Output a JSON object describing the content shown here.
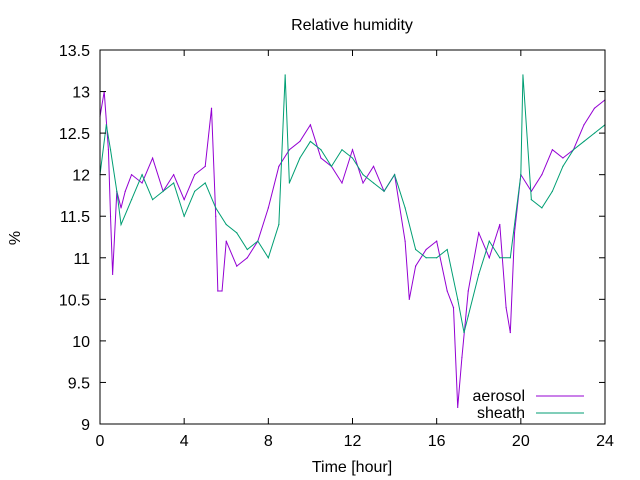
{
  "chart_data": {
    "type": "line",
    "title": "Relative humidity",
    "xlabel": "Time [hour]",
    "ylabel": "%",
    "xlim": [
      0,
      24
    ],
    "ylim": [
      9,
      13.5
    ],
    "xticks": [
      "0",
      "4",
      "8",
      "12",
      "16",
      "20",
      "24"
    ],
    "yticks": [
      "9",
      "9.5",
      "10",
      "10.5",
      "11",
      "11.5",
      "12",
      "12.5",
      "13",
      "13.5"
    ],
    "grid": false,
    "legend_position": "bottom-right",
    "series": [
      {
        "name": "aerosol",
        "color": "#9400d3",
        "x": [
          0,
          0.2,
          0.4,
          0.5,
          0.6,
          0.8,
          1.0,
          1.2,
          1.5,
          2.0,
          2.5,
          3.0,
          3.5,
          4.0,
          4.5,
          5.0,
          5.3,
          5.5,
          5.6,
          5.8,
          6.0,
          6.5,
          7.0,
          7.5,
          8.0,
          8.5,
          9.0,
          9.5,
          10.0,
          10.5,
          11.0,
          11.5,
          12.0,
          12.5,
          13.0,
          13.5,
          14.0,
          14.5,
          14.7,
          15.0,
          15.5,
          16.0,
          16.5,
          16.8,
          17.0,
          17.2,
          17.5,
          18.0,
          18.5,
          19.0,
          19.3,
          19.5,
          19.7,
          20.0,
          20.5,
          21.0,
          21.5,
          22.0,
          22.5,
          23.0,
          23.5,
          24.0
        ],
        "values": [
          12.7,
          13.0,
          12.3,
          11.5,
          10.8,
          11.8,
          11.6,
          11.8,
          12.0,
          11.9,
          12.2,
          11.8,
          12.0,
          11.7,
          12.0,
          12.1,
          12.8,
          11.5,
          10.6,
          10.6,
          11.2,
          10.9,
          11.0,
          11.2,
          11.6,
          12.1,
          12.3,
          12.4,
          12.6,
          12.2,
          12.1,
          11.9,
          12.3,
          11.9,
          12.1,
          11.8,
          12.0,
          11.2,
          10.5,
          10.9,
          11.1,
          11.2,
          10.6,
          10.4,
          9.2,
          9.8,
          10.6,
          11.3,
          11.0,
          11.4,
          10.4,
          10.1,
          11.3,
          12.0,
          11.8,
          12.0,
          12.3,
          12.2,
          12.3,
          12.6,
          12.8,
          12.9
        ]
      },
      {
        "name": "sheath",
        "color": "#009e73",
        "x": [
          0,
          0.3,
          0.5,
          0.8,
          1.0,
          1.5,
          2.0,
          2.5,
          3.0,
          3.5,
          4.0,
          4.5,
          5.0,
          5.5,
          6.0,
          6.5,
          7.0,
          7.5,
          8.0,
          8.5,
          8.8,
          9.0,
          9.5,
          10.0,
          10.5,
          11.0,
          11.5,
          12.0,
          12.5,
          13.0,
          13.5,
          14.0,
          14.5,
          15.0,
          15.5,
          16.0,
          16.5,
          17.0,
          17.3,
          17.5,
          18.0,
          18.5,
          19.0,
          19.5,
          20.0,
          20.1,
          20.5,
          21.0,
          21.5,
          22.0,
          22.5,
          23.0,
          23.5,
          24.0
        ],
        "values": [
          12.0,
          12.6,
          12.3,
          11.8,
          11.4,
          11.7,
          12.0,
          11.7,
          11.8,
          11.9,
          11.5,
          11.8,
          11.9,
          11.6,
          11.4,
          11.3,
          11.1,
          11.2,
          11.0,
          11.4,
          13.2,
          11.9,
          12.2,
          12.4,
          12.3,
          12.1,
          12.3,
          12.2,
          12.0,
          11.9,
          11.8,
          12.0,
          11.6,
          11.1,
          11.0,
          11.0,
          11.1,
          10.5,
          10.1,
          10.3,
          10.8,
          11.2,
          11.0,
          11.0,
          12.0,
          13.2,
          11.7,
          11.6,
          11.8,
          12.1,
          12.3,
          12.4,
          12.5,
          12.6
        ]
      }
    ]
  }
}
